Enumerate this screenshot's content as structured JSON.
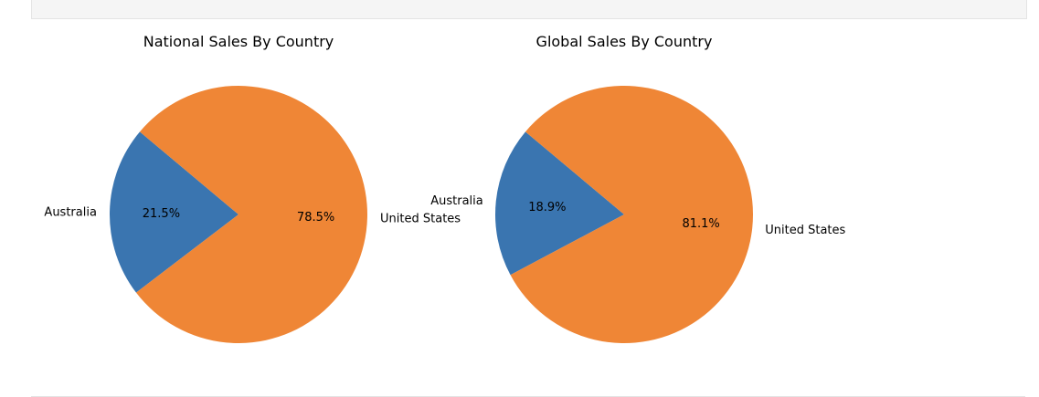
{
  "chart_data": [
    {
      "type": "pie",
      "title": "National Sales  By Country",
      "slices": [
        {
          "label": "Australia",
          "pct_label": "21.5%",
          "value": 21.5
        },
        {
          "label": "United States",
          "pct_label": "78.5%",
          "value": 78.5
        }
      ],
      "colors": [
        "#3a75b0",
        "#ef8636"
      ],
      "start_angle_deg": 140
    },
    {
      "type": "pie",
      "title": "Global Sales  By Country",
      "slices": [
        {
          "label": "Australia",
          "pct_label": "18.9%",
          "value": 18.9
        },
        {
          "label": "United States",
          "pct_label": "81.1%",
          "value": 81.1
        }
      ],
      "colors": [
        "#3a75b0",
        "#ef8636"
      ],
      "start_angle_deg": 140
    }
  ]
}
